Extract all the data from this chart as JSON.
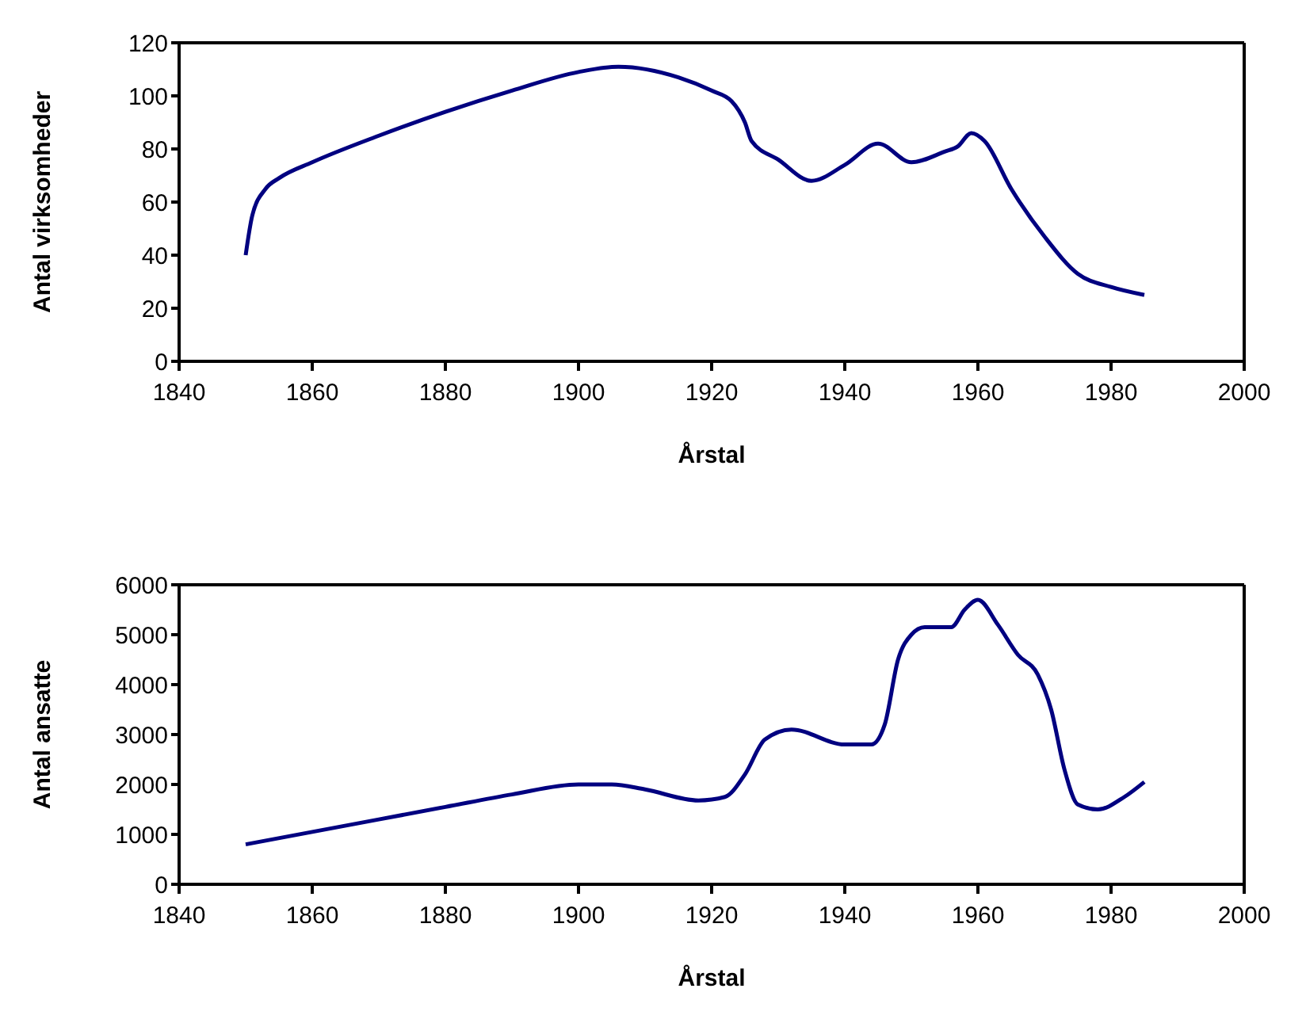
{
  "chart_data": [
    {
      "type": "line",
      "xlabel": "Årstal",
      "ylabel": "Antal virksomheder",
      "xlim": [
        1840,
        2000
      ],
      "xticks": [
        1840,
        1860,
        1880,
        1900,
        1920,
        1940,
        1960,
        1980,
        2000
      ],
      "ylim": [
        0,
        120
      ],
      "yticks": [
        0,
        20,
        40,
        60,
        80,
        100,
        120
      ],
      "grid": false,
      "legend": false,
      "marker": "none",
      "line_style": "solid",
      "x": [
        1850,
        1851,
        1853,
        1855,
        1860,
        1870,
        1880,
        1890,
        1900,
        1906,
        1915,
        1920,
        1923,
        1925,
        1926,
        1930,
        1935,
        1940,
        1945,
        1950,
        1955,
        1957,
        1959,
        1961,
        1965,
        1970,
        1975,
        1980,
        1985
      ],
      "series": [
        {
          "color": "#000080",
          "values": [
            40,
            55,
            65,
            69,
            75,
            85,
            94,
            102,
            109,
            111,
            107,
            102,
            98,
            90,
            83,
            76,
            68,
            74,
            82,
            75,
            79,
            81,
            86,
            83,
            65,
            47,
            33,
            28,
            25
          ]
        }
      ]
    },
    {
      "type": "line",
      "xlabel": "Årstal",
      "ylabel": "Antal ansatte",
      "xlim": [
        1840,
        2000
      ],
      "xticks": [
        1840,
        1860,
        1880,
        1900,
        1920,
        1940,
        1960,
        1980,
        2000
      ],
      "ylim": [
        0,
        6000
      ],
      "yticks": [
        0,
        1000,
        2000,
        3000,
        4000,
        5000,
        6000
      ],
      "grid": false,
      "legend": false,
      "marker": "none",
      "line_style": "solid",
      "x": [
        1850,
        1860,
        1870,
        1880,
        1890,
        1900,
        1905,
        1910,
        1918,
        1922,
        1925,
        1928,
        1932,
        1940,
        1944,
        1946,
        1948,
        1950,
        1952,
        1956,
        1958,
        1960,
        1963,
        1966,
        1969,
        1971,
        1973,
        1975,
        1978,
        1982,
        1985
      ],
      "series": [
        {
          "color": "#000080",
          "values": [
            800,
            1050,
            1300,
            1550,
            1800,
            2000,
            2000,
            1900,
            1680,
            1750,
            2200,
            2900,
            3100,
            2800,
            2800,
            3200,
            4500,
            5000,
            5150,
            5150,
            5500,
            5700,
            5200,
            4600,
            4200,
            3500,
            2300,
            1600,
            1500,
            1750,
            2050
          ]
        }
      ]
    }
  ]
}
